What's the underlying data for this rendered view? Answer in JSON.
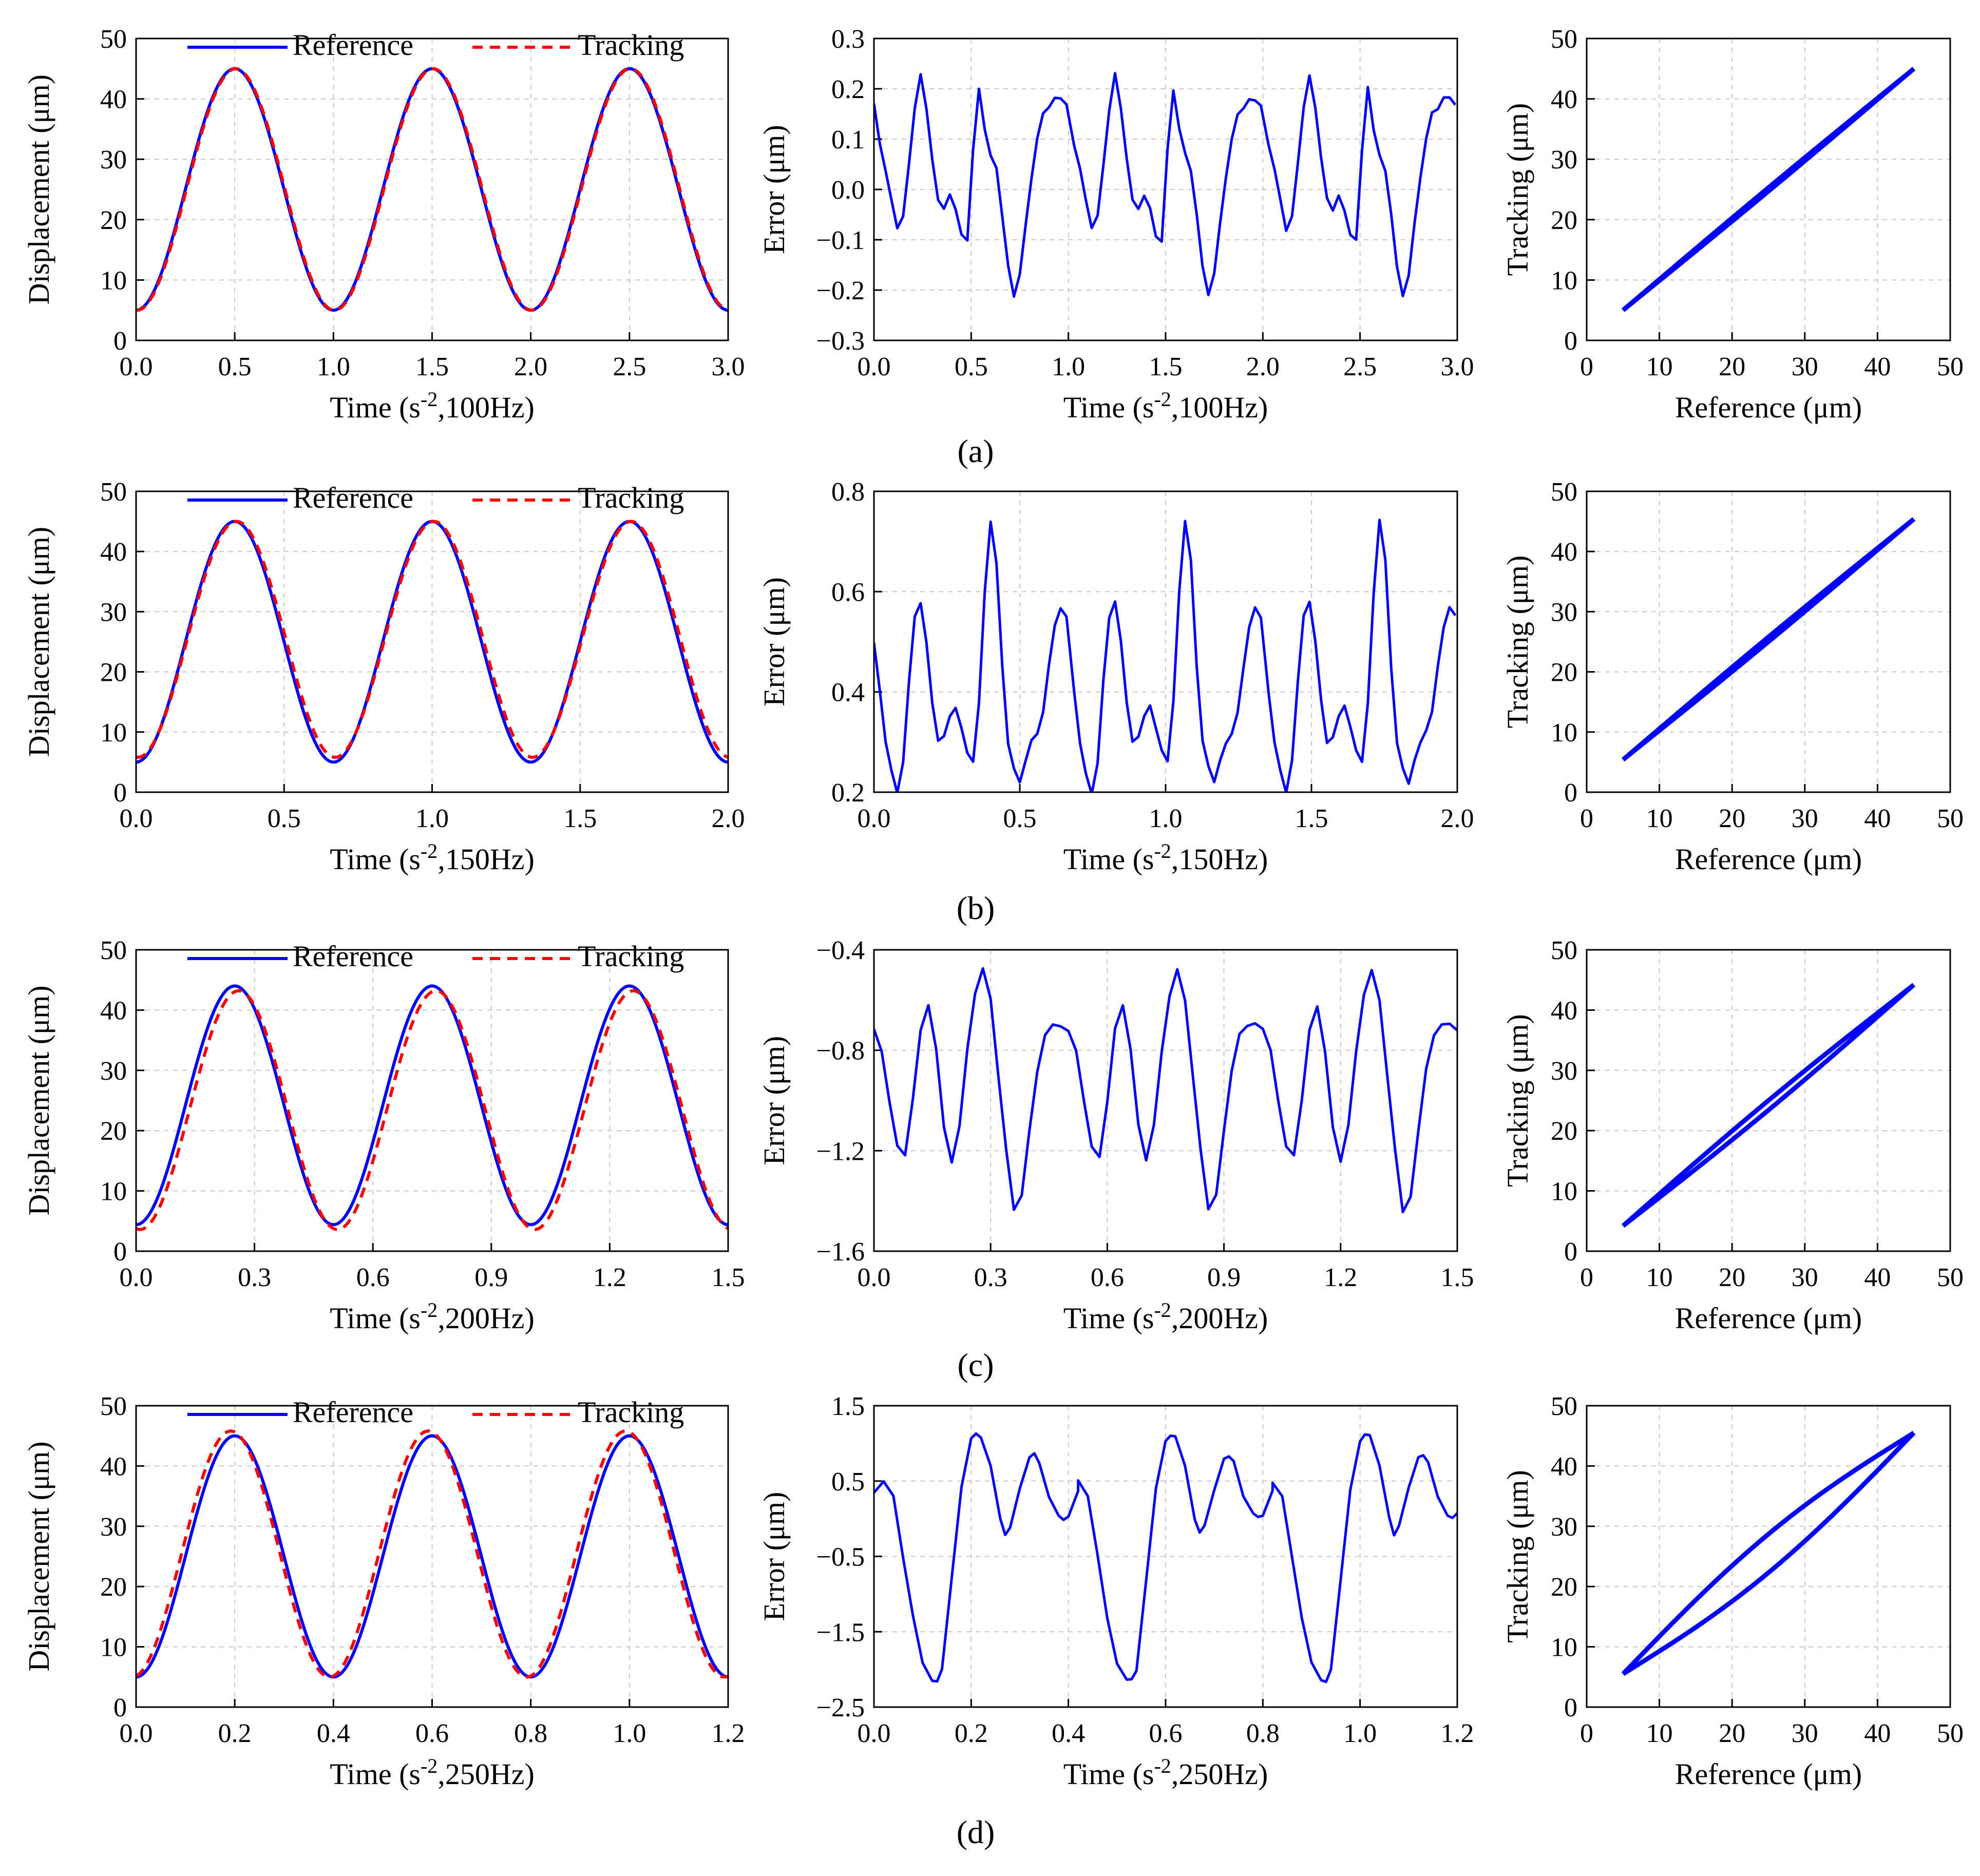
{
  "colors": {
    "reference": "#0000ff",
    "tracking": "#ff0000",
    "error": "#0000ff",
    "grid": "#c8c8c8"
  },
  "chart_data": [
    {
      "id": "a1",
      "type": "line",
      "row": "a",
      "column": "displacement",
      "xlabel_base": "Time (s",
      "xlabel_sup": "-2",
      "xlabel_rest": ",100Hz)",
      "ylabel": "Displacement (μm)",
      "xlim": [
        0,
        3
      ],
      "ylim": [
        0,
        50
      ],
      "xticks": [
        "0.0",
        "0.5",
        "1.0",
        "1.5",
        "2.0",
        "2.5",
        "3.0"
      ],
      "yticks": [
        "0",
        "10",
        "20",
        "30",
        "40",
        "50"
      ],
      "freq_hz": 100,
      "amp_offset": 25,
      "amplitude": 20,
      "tracking_lag": 0.005,
      "tracking_scale": 1.0,
      "tracking_shift": 0,
      "series": [
        {
          "name": "Reference",
          "style": "solid"
        },
        {
          "name": "Tracking",
          "style": "dashed"
        }
      ],
      "legend_position": "top"
    },
    {
      "id": "a2",
      "type": "line",
      "row": "a",
      "column": "error",
      "xlabel_base": "Time (s",
      "xlabel_sup": "-2",
      "xlabel_rest": ",100Hz)",
      "ylabel": "Error (μm)",
      "xlim": [
        0,
        3
      ],
      "ylim": [
        -0.3,
        0.3
      ],
      "xticks": [
        "0.0",
        "0.5",
        "1.0",
        "1.5",
        "2.0",
        "2.5",
        "3.0"
      ],
      "yticks": [
        "−0.3",
        "−0.2",
        "−0.1",
        "0.0",
        "0.1",
        "0.2",
        "0.3"
      ],
      "x": [
        0,
        0.03,
        0.06,
        0.09,
        0.12,
        0.15,
        0.18,
        0.21,
        0.24,
        0.27,
        0.3,
        0.33,
        0.36,
        0.39,
        0.42,
        0.45,
        0.48,
        0.51,
        0.54,
        0.57,
        0.6,
        0.63,
        0.66,
        0.69,
        0.72,
        0.75,
        0.78,
        0.81,
        0.84,
        0.87,
        0.9,
        0.93,
        0.96,
        0.99
      ],
      "y": [
        0.17,
        0.09,
        0.04,
        -0.02,
        -0.08,
        -0.05,
        0.05,
        0.16,
        0.23,
        0.16,
        0.06,
        -0.02,
        -0.04,
        -0.01,
        -0.04,
        -0.09,
        -0.1,
        0.08,
        0.2,
        0.12,
        0.07,
        0.04,
        -0.05,
        -0.15,
        -0.21,
        -0.17,
        -0.07,
        0.02,
        0.1,
        0.15,
        0.16,
        0.18,
        0.18,
        0.17
      ],
      "period": 1.0,
      "legend_position": "none"
    },
    {
      "id": "a3",
      "type": "scatter",
      "row": "a",
      "column": "hysteresis",
      "xlabel": "Reference (μm)",
      "ylabel": "Tracking (μm)",
      "xlim": [
        0,
        50
      ],
      "ylim": [
        0,
        50
      ],
      "xticks": [
        "0",
        "10",
        "20",
        "30",
        "40",
        "50"
      ],
      "yticks": [
        "0",
        "10",
        "20",
        "30",
        "40",
        "50"
      ],
      "ref_range": [
        5,
        45
      ],
      "loop_width": 0.3,
      "track_shift": 0
    },
    {
      "id": "b1",
      "type": "line",
      "row": "b",
      "column": "displacement",
      "xlabel_base": "Time (s",
      "xlabel_sup": "-2",
      "xlabel_rest": ",150Hz)",
      "ylabel": "Displacement (μm)",
      "xlim": [
        0,
        2
      ],
      "ylim": [
        0,
        50
      ],
      "xticks": [
        "0.0",
        "0.5",
        "1.0",
        "1.5",
        "2.0"
      ],
      "yticks": [
        "0",
        "10",
        "20",
        "30",
        "40",
        "50"
      ],
      "freq_hz": 150,
      "amp_offset": 25,
      "amplitude": 20,
      "tracking_lag": 0.006,
      "tracking_scale": 0.98,
      "tracking_shift": 0.4,
      "series": [
        {
          "name": "Reference",
          "style": "solid"
        },
        {
          "name": "Tracking",
          "style": "dashed"
        }
      ],
      "legend_position": "top"
    },
    {
      "id": "b2",
      "type": "line",
      "row": "b",
      "column": "error",
      "xlabel_base": "Time (s",
      "xlabel_sup": "-2",
      "xlabel_rest": ",150Hz)",
      "ylabel": "Error (μm)",
      "xlim": [
        0,
        2
      ],
      "ylim": [
        0.2,
        0.8
      ],
      "xticks": [
        "0.0",
        "0.5",
        "1.0",
        "1.5",
        "2.0"
      ],
      "yticks": [
        "0.2",
        "0.4",
        "0.6",
        "0.8"
      ],
      "x": [
        0,
        0.02,
        0.04,
        0.06,
        0.08,
        0.1,
        0.12,
        0.14,
        0.16,
        0.18,
        0.2,
        0.22,
        0.24,
        0.26,
        0.28,
        0.3,
        0.32,
        0.34,
        0.36,
        0.38,
        0.4,
        0.42,
        0.44,
        0.46,
        0.48,
        0.5,
        0.52,
        0.54,
        0.56,
        0.58,
        0.6,
        0.62,
        0.64,
        0.66
      ],
      "y": [
        0.5,
        0.4,
        0.3,
        0.24,
        0.2,
        0.26,
        0.42,
        0.55,
        0.58,
        0.5,
        0.38,
        0.3,
        0.31,
        0.35,
        0.37,
        0.33,
        0.28,
        0.26,
        0.38,
        0.6,
        0.74,
        0.66,
        0.45,
        0.3,
        0.25,
        0.22,
        0.26,
        0.3,
        0.32,
        0.36,
        0.45,
        0.53,
        0.57,
        0.55
      ],
      "period": 0.6667,
      "legend_position": "none"
    },
    {
      "id": "b3",
      "type": "scatter",
      "row": "b",
      "column": "hysteresis",
      "xlabel": "Reference (μm)",
      "ylabel": "Tracking (μm)",
      "xlim": [
        0,
        50
      ],
      "ylim": [
        0,
        50
      ],
      "xticks": [
        "0",
        "10",
        "20",
        "30",
        "40",
        "50"
      ],
      "yticks": [
        "0",
        "10",
        "20",
        "30",
        "40",
        "50"
      ],
      "ref_range": [
        5,
        45
      ],
      "loop_width": 0.4,
      "track_shift": 0.4
    },
    {
      "id": "c1",
      "type": "line",
      "row": "c",
      "column": "displacement",
      "xlabel_base": "Time (s",
      "xlabel_sup": "-2",
      "xlabel_rest": ",200Hz)",
      "ylabel": "Displacement (μm)",
      "xlim": [
        0,
        1.5
      ],
      "ylim": [
        0,
        50
      ],
      "xticks": [
        "0.0",
        "0.3",
        "0.6",
        "0.9",
        "1.2",
        "1.5"
      ],
      "yticks": [
        "0",
        "10",
        "20",
        "30",
        "40",
        "50"
      ],
      "freq_hz": 200,
      "amp_offset": 24.2,
      "amplitude": 19.8,
      "tracking_lag": 0.01,
      "tracking_scale": 1.0,
      "tracking_shift": -0.8,
      "series": [
        {
          "name": "Reference",
          "style": "solid"
        },
        {
          "name": "Tracking",
          "style": "dashed"
        }
      ],
      "legend_position": "top"
    },
    {
      "id": "c2",
      "type": "line",
      "row": "c",
      "column": "error",
      "xlabel_base": "Time (s",
      "xlabel_sup": "-2",
      "xlabel_rest": ",200Hz)",
      "ylabel": "Error (μm)",
      "xlim": [
        0,
        1.5
      ],
      "ylim": [
        -1.6,
        -0.4
      ],
      "xticks": [
        "0.0",
        "0.3",
        "0.6",
        "0.9",
        "1.2",
        "1.5"
      ],
      "yticks": [
        "−1.6",
        "−1.2",
        "−0.8",
        "−0.4"
      ],
      "x": [
        0,
        0.02,
        0.04,
        0.06,
        0.08,
        0.1,
        0.12,
        0.14,
        0.16,
        0.18,
        0.2,
        0.22,
        0.24,
        0.26,
        0.28,
        0.3,
        0.32,
        0.34,
        0.36,
        0.38,
        0.4,
        0.42,
        0.44,
        0.46,
        0.48,
        0.5
      ],
      "y": [
        -0.72,
        -0.8,
        -1.0,
        -1.18,
        -1.22,
        -1.0,
        -0.72,
        -0.62,
        -0.8,
        -1.1,
        -1.24,
        -1.1,
        -0.8,
        -0.58,
        -0.48,
        -0.6,
        -0.9,
        -1.2,
        -1.44,
        -1.38,
        -1.12,
        -0.88,
        -0.74,
        -0.7,
        -0.7,
        -0.72
      ],
      "period": 0.5,
      "legend_position": "none"
    },
    {
      "id": "c3",
      "type": "scatter",
      "row": "c",
      "column": "hysteresis",
      "xlabel": "Reference (μm)",
      "ylabel": "Tracking (μm)",
      "xlim": [
        0,
        50
      ],
      "ylim": [
        0,
        50
      ],
      "xticks": [
        "0",
        "10",
        "20",
        "30",
        "40",
        "50"
      ],
      "yticks": [
        "0",
        "10",
        "20",
        "30",
        "40",
        "50"
      ],
      "ref_range": [
        5,
        45
      ],
      "loop_width": 0.8,
      "track_shift": -0.8
    },
    {
      "id": "d1",
      "type": "line",
      "row": "d",
      "column": "displacement",
      "xlabel_base": "Time (s",
      "xlabel_sup": "-2",
      "xlabel_rest": ",250Hz)",
      "ylabel": "Displacement (μm)",
      "xlim": [
        0,
        1.2
      ],
      "ylim": [
        0,
        50
      ],
      "xticks": [
        "0.0",
        "0.2",
        "0.4",
        "0.6",
        "0.8",
        "1.0",
        "1.2"
      ],
      "yticks": [
        "0",
        "10",
        "20",
        "30",
        "40",
        "50"
      ],
      "freq_hz": 250,
      "amp_offset": 25,
      "amplitude": 20,
      "tracking_lag": -0.008,
      "tracking_scale": 1.02,
      "tracking_shift": 0.4,
      "series": [
        {
          "name": "Reference",
          "style": "solid"
        },
        {
          "name": "Tracking",
          "style": "dashed"
        }
      ],
      "legend_position": "top"
    },
    {
      "id": "d2",
      "type": "line",
      "row": "d",
      "column": "error",
      "xlabel_base": "Time (s",
      "xlabel_sup": "-2",
      "xlabel_rest": ",250Hz)",
      "ylabel": "Error (μm)",
      "xlim": [
        0,
        1.2
      ],
      "ylim": [
        -2.5,
        1.5
      ],
      "xticks": [
        "0.0",
        "0.2",
        "0.4",
        "0.6",
        "0.8",
        "1.0",
        "1.2"
      ],
      "yticks": [
        "−2.5",
        "−1.5",
        "−0.5",
        "0.5",
        "1.5"
      ],
      "x": [
        0,
        0.02,
        0.04,
        0.06,
        0.08,
        0.1,
        0.12,
        0.13,
        0.14,
        0.16,
        0.18,
        0.2,
        0.21,
        0.22,
        0.24,
        0.26,
        0.27,
        0.28,
        0.3,
        0.32,
        0.33,
        0.34,
        0.36,
        0.38,
        0.39,
        0.4,
        0.42
      ],
      "y": [
        0.35,
        0.5,
        0.3,
        -0.5,
        -1.3,
        -1.9,
        -2.15,
        -2.15,
        -2.0,
        -0.8,
        0.4,
        1.05,
        1.12,
        1.1,
        0.7,
        0.0,
        -0.2,
        -0.1,
        0.4,
        0.8,
        0.85,
        0.75,
        0.3,
        0.05,
        0.0,
        0.05,
        0.35
      ],
      "period": 0.4,
      "legend_position": "none"
    },
    {
      "id": "d3",
      "type": "scatter",
      "row": "d",
      "column": "hysteresis",
      "xlabel": "Reference (μm)",
      "ylabel": "Tracking (μm)",
      "xlim": [
        0,
        50
      ],
      "ylim": [
        0,
        50
      ],
      "xticks": [
        "0",
        "10",
        "20",
        "30",
        "40",
        "50"
      ],
      "yticks": [
        "0",
        "10",
        "20",
        "30",
        "40",
        "50"
      ],
      "ref_range": [
        5,
        45
      ],
      "loop_width": 3.2,
      "track_shift": 0.5
    }
  ],
  "captions": [
    "(a)",
    "(b)",
    "(c)",
    "(d)"
  ]
}
